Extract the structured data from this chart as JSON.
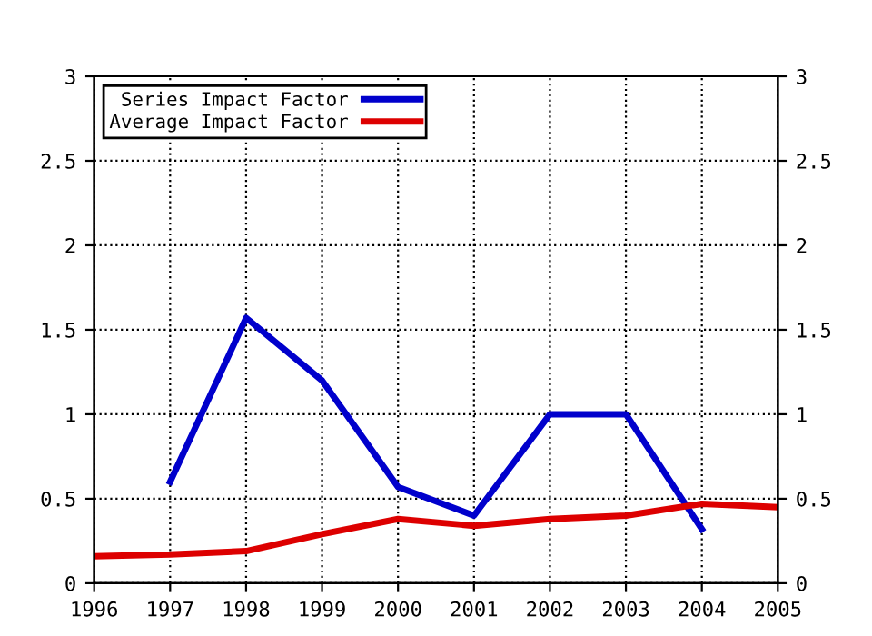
{
  "chart_data": {
    "type": "line",
    "x": [
      1996,
      1997,
      1998,
      1999,
      2000,
      2001,
      2002,
      2003,
      2004,
      2005
    ],
    "series": [
      {
        "name": "Series Impact Factor",
        "color": "#0000cc",
        "values": [
          null,
          0.6,
          1.57,
          1.2,
          0.57,
          0.4,
          1.0,
          1.0,
          0.32,
          null
        ]
      },
      {
        "name": "Average Impact Factor",
        "color": "#dd0000",
        "values": [
          0.16,
          0.17,
          0.19,
          0.29,
          0.38,
          0.34,
          0.38,
          0.4,
          0.47,
          0.45
        ]
      }
    ],
    "xlim": [
      1996,
      2005
    ],
    "xticks": [
      1996,
      1997,
      1998,
      1999,
      2000,
      2001,
      2002,
      2003,
      2004,
      2005
    ],
    "ylim": [
      0,
      3
    ],
    "yticks": [
      0,
      0.5,
      1,
      1.5,
      2,
      2.5,
      3
    ],
    "y2lim": [
      0,
      3
    ],
    "y2ticks": [
      0,
      0.5,
      1,
      1.5,
      2,
      2.5,
      3
    ],
    "grid": true,
    "legend": "top left",
    "marker": "none",
    "line_style": "solid"
  }
}
